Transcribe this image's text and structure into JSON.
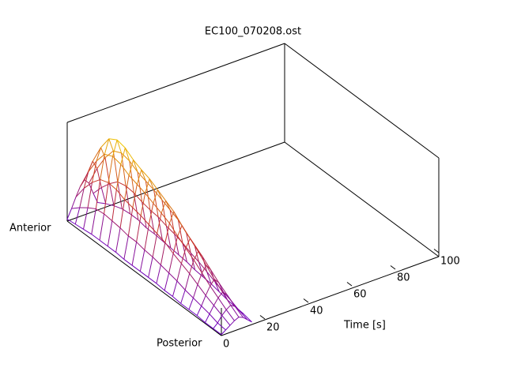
{
  "chart_data": {
    "type": "surface",
    "title": "EC100_070208.ost",
    "xlabel": "Time [s]",
    "ylabels": [
      "Anterior",
      "Posterior"
    ],
    "xlim": [
      0,
      100
    ],
    "xticks": [
      0,
      20,
      40,
      60,
      80,
      100
    ],
    "zlim": [
      0,
      1
    ],
    "palette": [
      "#6a00c8",
      "#c8302a",
      "#f0c800"
    ],
    "x": [
      0,
      2,
      4,
      6,
      8,
      10,
      12,
      14
    ],
    "z": [
      [
        0.02,
        0.03,
        0.04,
        0.05,
        0.05,
        0.05,
        0.05,
        0.04,
        0.04,
        0.04,
        0.04,
        0.04,
        0.03,
        0.03,
        0.02,
        0.02,
        0.02,
        0.01,
        0.01,
        0.01
      ],
      [
        0.11,
        0.18,
        0.24,
        0.29,
        0.3,
        0.29,
        0.28,
        0.26,
        0.26,
        0.24,
        0.23,
        0.21,
        0.19,
        0.17,
        0.14,
        0.12,
        0.1,
        0.08,
        0.05,
        0.04
      ],
      [
        0.21,
        0.36,
        0.48,
        0.57,
        0.6,
        0.59,
        0.55,
        0.53,
        0.51,
        0.48,
        0.45,
        0.42,
        0.37,
        0.33,
        0.29,
        0.24,
        0.19,
        0.15,
        0.11,
        0.07
      ],
      [
        0.3,
        0.51,
        0.68,
        0.81,
        0.85,
        0.83,
        0.78,
        0.75,
        0.72,
        0.68,
        0.64,
        0.6,
        0.53,
        0.47,
        0.41,
        0.34,
        0.27,
        0.21,
        0.15,
        0.1
      ],
      [
        0.35,
        0.6,
        0.8,
        0.95,
        1.0,
        0.98,
        0.92,
        0.88,
        0.85,
        0.8,
        0.75,
        0.7,
        0.62,
        0.55,
        0.48,
        0.4,
        0.32,
        0.25,
        0.18,
        0.12
      ],
      [
        0.3,
        0.51,
        0.68,
        0.81,
        0.85,
        0.83,
        0.78,
        0.75,
        0.72,
        0.68,
        0.64,
        0.6,
        0.53,
        0.47,
        0.41,
        0.34,
        0.27,
        0.21,
        0.15,
        0.1
      ],
      [
        0.18,
        0.3,
        0.4,
        0.48,
        0.5,
        0.49,
        0.46,
        0.44,
        0.43,
        0.4,
        0.38,
        0.35,
        0.31,
        0.28,
        0.24,
        0.2,
        0.16,
        0.13,
        0.09,
        0.06
      ],
      [
        0.07,
        0.12,
        0.16,
        0.19,
        0.2,
        0.2,
        0.18,
        0.18,
        0.17,
        0.16,
        0.15,
        0.14,
        0.12,
        0.11,
        0.1,
        0.08,
        0.06,
        0.05,
        0.04,
        0.02
      ]
    ]
  }
}
